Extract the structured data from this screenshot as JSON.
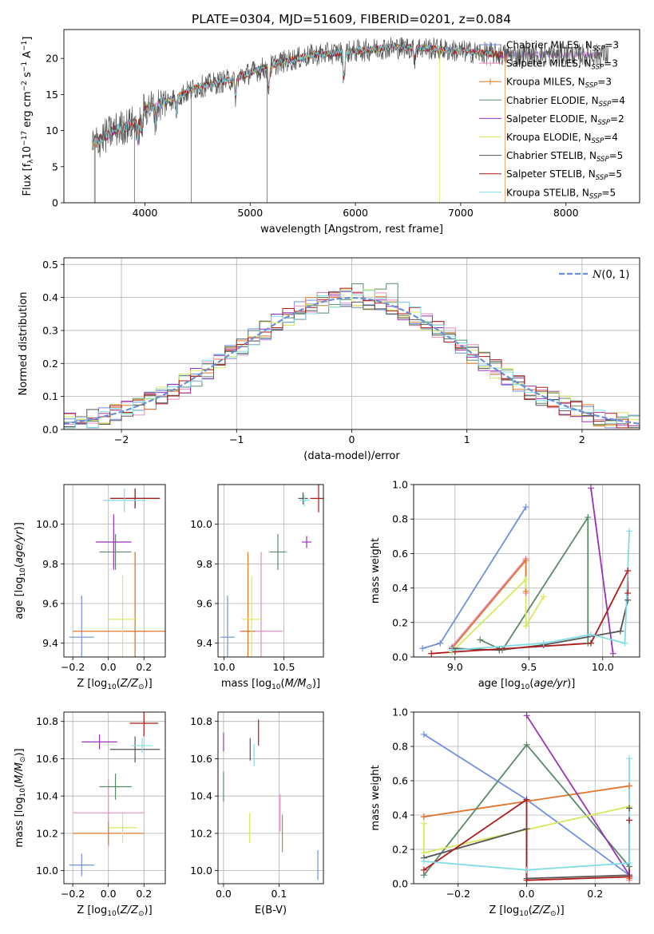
{
  "figure_title": "PLATE=0304, MJD=51609, FIBERID=0201, z=0.084",
  "colors": {
    "chabrier_miles": "#6f8fe0",
    "salpeter_miles": "#e58bc4",
    "kroupa_miles": "#e07a2a",
    "chabrier_elodie": "#5a8a6a",
    "salpeter_elodie": "#9932b8",
    "kroupa_elodie": "#d8e860",
    "chabrier_stelib": "#555555",
    "salpeter_stelib": "#b01a1a",
    "kroupa_stelib": "#80dde6",
    "gauss": "#6a8fd8",
    "grid": "#b0b0b0"
  },
  "chart_data": [
    {
      "id": "spectrum",
      "type": "line",
      "xlabel": "wavelength [Angstrom, rest frame]",
      "ylabel": "Flux [f_λ10^-17 erg cm^-2 s^-1 A^-1]",
      "xlim": [
        3230,
        8700
      ],
      "ylim": [
        0,
        24
      ],
      "xticks": [
        4000,
        5000,
        6000,
        7000,
        8000
      ],
      "yticks": [
        0,
        5,
        10,
        15,
        20
      ],
      "grid": false,
      "legend_position": "right",
      "continuum": {
        "x": [
          3500,
          3700,
          3900,
          4000,
          4200,
          4500,
          4800,
          5000,
          5300,
          5600,
          6000,
          6300,
          6600,
          7000,
          7400
        ],
        "y": [
          8,
          10,
          11,
          13,
          14,
          16,
          17,
          18,
          19.5,
          20.5,
          21,
          21.5,
          21.5,
          21,
          20.5
        ]
      },
      "series": [
        {
          "label": "Chabrier MILES, N_SSP=3",
          "color_key": "chabrier_miles",
          "marker": true
        },
        {
          "label": "Salpeter MILES, N_SSP=3",
          "color_key": "salpeter_miles",
          "marker": true
        },
        {
          "label": "Kroupa MILES, N_SSP=3",
          "color_key": "kroupa_miles",
          "marker": true
        },
        {
          "label": "Chabrier ELODIE, N_SSP=4",
          "color_key": "chabrier_elodie",
          "marker": false
        },
        {
          "label": "Salpeter ELODIE, N_SSP=2",
          "color_key": "salpeter_elodie",
          "marker": false
        },
        {
          "label": "Kroupa ELODIE, N_SSP=4",
          "color_key": "kroupa_elodie",
          "marker": false
        },
        {
          "label": "Chabrier STELIB, N_SSP=5",
          "color_key": "chabrier_stelib",
          "marker": false
        },
        {
          "label": "Salpeter STELIB, N_SSP=5",
          "color_key": "salpeter_stelib",
          "marker": false
        },
        {
          "label": "Kroupa STELIB, N_SSP=5",
          "color_key": "kroupa_stelib",
          "marker": false
        }
      ]
    },
    {
      "id": "residuals",
      "type": "histogram",
      "xlabel": "(data-model)/error",
      "ylabel": "Normed distribution",
      "xlim": [
        -2.5,
        2.5
      ],
      "ylim": [
        0,
        0.52
      ],
      "xticks": [
        -2,
        -1,
        0,
        1,
        2
      ],
      "yticks": [
        0.0,
        0.1,
        0.2,
        0.3,
        0.4,
        0.5
      ],
      "grid": true,
      "legend_position": "top-right",
      "legend_label": "N(0,1)",
      "bin_width": 0.1,
      "bin_start": -2.5
    },
    {
      "id": "age_vs_Z",
      "type": "errorbar",
      "xlabel": "Z [log10(Z/Zsun)]",
      "ylabel": "age [log10(age/yr)]",
      "xlim": [
        -0.25,
        0.32
      ],
      "ylim": [
        9.33,
        10.2
      ],
      "xticks": [
        -0.2,
        0.0,
        0.2
      ],
      "yticks": [
        9.4,
        9.6,
        9.8,
        10.0
      ],
      "grid": true,
      "points": [
        {
          "color_key": "chabrier_miles",
          "x": -0.15,
          "xerr": 0.07,
          "y": 9.43,
          "yerr": 0.21
        },
        {
          "color_key": "salpeter_miles",
          "x": 0.15,
          "xerr": 0.07,
          "y": 9.46,
          "yerr": 0.4
        },
        {
          "color_key": "kroupa_miles",
          "x": 0.15,
          "xerr": 0.35,
          "y": 9.46,
          "yerr": 0.4
        },
        {
          "color_key": "chabrier_elodie",
          "x": 0.04,
          "xerr": 0.09,
          "y": 9.86,
          "yerr": 0.09
        },
        {
          "color_key": "salpeter_elodie",
          "x": 0.03,
          "xerr": 0.1,
          "y": 9.91,
          "yerr": 0.14
        },
        {
          "color_key": "kroupa_elodie",
          "x": 0.08,
          "xerr": 0.08,
          "y": 9.52,
          "yerr": 0.22
        },
        {
          "color_key": "chabrier_stelib",
          "x": 0.15,
          "xerr": 0.14,
          "y": 10.13,
          "yerr": 0.05
        },
        {
          "color_key": "salpeter_stelib",
          "x": 0.15,
          "xerr": 0.14,
          "y": 10.13,
          "yerr": 0.05
        },
        {
          "color_key": "kroupa_stelib",
          "x": 0.09,
          "xerr": 0.12,
          "y": 10.12,
          "yerr": 0.06
        }
      ]
    },
    {
      "id": "age_vs_mass",
      "type": "errorbar",
      "xlabel": "mass [log10(M/Msun)]",
      "xlim": [
        9.95,
        10.83
      ],
      "ylim": [
        9.33,
        10.2
      ],
      "xticks": [
        10.0,
        10.5
      ],
      "yticks": [
        9.4,
        9.6,
        9.8,
        10.0
      ],
      "grid": true,
      "points": [
        {
          "color_key": "chabrier_miles",
          "x": 10.03,
          "xerr": 0.06,
          "y": 9.43,
          "yerr": 0.21
        },
        {
          "color_key": "salpeter_miles",
          "x": 10.31,
          "xerr": 0.18,
          "y": 9.46,
          "yerr": 0.4
        },
        {
          "color_key": "kroupa_miles",
          "x": 10.2,
          "xerr": 0.06,
          "y": 9.46,
          "yerr": 0.4
        },
        {
          "color_key": "chabrier_elodie",
          "x": 10.45,
          "xerr": 0.07,
          "y": 9.86,
          "yerr": 0.09
        },
        {
          "color_key": "salpeter_elodie",
          "x": 10.69,
          "xerr": 0.04,
          "y": 9.91,
          "yerr": 0.03
        },
        {
          "color_key": "kroupa_elodie",
          "x": 10.23,
          "xerr": 0.08,
          "y": 9.52,
          "yerr": 0.22
        },
        {
          "color_key": "chabrier_stelib",
          "x": 10.66,
          "xerr": 0.04,
          "y": 10.13,
          "yerr": 0.03
        },
        {
          "color_key": "salpeter_stelib",
          "x": 10.79,
          "xerr": 0.07,
          "y": 10.13,
          "yerr": 0.07
        },
        {
          "color_key": "kroupa_stelib",
          "x": 10.67,
          "xerr": 0.04,
          "y": 10.12,
          "yerr": 0.03
        }
      ]
    },
    {
      "id": "weight_vs_age",
      "type": "line",
      "xlabel": "age [log10(age/yr)]",
      "ylabel": "mass weight",
      "xlim": [
        8.72,
        10.25
      ],
      "ylim": [
        0,
        1.0
      ],
      "xticks": [
        9.0,
        9.5,
        10.0
      ],
      "yticks": [
        0.0,
        0.2,
        0.4,
        0.6,
        0.8,
        1.0
      ],
      "grid": true,
      "series": [
        {
          "color_key": "chabrier_miles",
          "x": [
            8.78,
            8.9,
            9.48
          ],
          "y": [
            0.05,
            0.08,
            0.87
          ]
        },
        {
          "color_key": "salpeter_miles",
          "x": [
            8.98,
            9.48,
            9.48
          ],
          "y": [
            0.06,
            0.57,
            0.37
          ]
        },
        {
          "color_key": "kroupa_miles",
          "x": [
            8.98,
            9.48,
            9.48
          ],
          "y": [
            0.05,
            0.56,
            0.38
          ]
        },
        {
          "color_key": "chabrier_elodie",
          "x": [
            9.17,
            9.32,
            9.9,
            9.9
          ],
          "y": [
            0.1,
            0.04,
            0.81,
            0.08
          ]
        },
        {
          "color_key": "salpeter_elodie",
          "x": [
            9.92,
            10.07
          ],
          "y": [
            0.98,
            0.02
          ]
        },
        {
          "color_key": "kroupa_elodie",
          "x": [
            8.98,
            9.48,
            9.48,
            9.6
          ],
          "y": [
            0.03,
            0.45,
            0.18,
            0.35
          ]
        },
        {
          "color_key": "chabrier_stelib",
          "x": [
            8.98,
            9.3,
            9.6,
            10.12,
            10.17
          ],
          "y": [
            0.05,
            0.04,
            0.07,
            0.15,
            0.33
          ]
        },
        {
          "color_key": "salpeter_stelib",
          "x": [
            8.84,
            9.0,
            9.92,
            10.17,
            10.17
          ],
          "y": [
            0.02,
            0.03,
            0.08,
            0.5,
            0.37
          ]
        },
        {
          "color_key": "kroupa_stelib",
          "x": [
            8.98,
            9.6,
            9.92,
            10.15,
            10.18
          ],
          "y": [
            0.04,
            0.08,
            0.13,
            0.08,
            0.73
          ]
        }
      ]
    },
    {
      "id": "mass_vs_Z",
      "type": "errorbar",
      "xlabel": "Z [log10(Z/Zsun)]",
      "ylabel": "mass [log10(M/Msun)]",
      "xlim": [
        -0.25,
        0.32
      ],
      "ylim": [
        9.93,
        10.85
      ],
      "xticks": [
        -0.2,
        0.0,
        0.2
      ],
      "yticks": [
        10.0,
        10.2,
        10.4,
        10.6,
        10.8
      ],
      "grid": true,
      "points": [
        {
          "color_key": "chabrier_miles",
          "x": -0.15,
          "xerr": 0.07,
          "y": 10.03,
          "yerr": 0.06
        },
        {
          "color_key": "salpeter_miles",
          "x": 0.0,
          "xerr": 0.2,
          "y": 10.31,
          "yerr": 0.18
        },
        {
          "color_key": "kroupa_miles",
          "x": 0.0,
          "xerr": 0.2,
          "y": 10.2,
          "yerr": 0.06
        },
        {
          "color_key": "chabrier_elodie",
          "x": 0.04,
          "xerr": 0.09,
          "y": 10.45,
          "yerr": 0.07
        },
        {
          "color_key": "salpeter_elodie",
          "x": -0.05,
          "xerr": 0.1,
          "y": 10.69,
          "yerr": 0.04
        },
        {
          "color_key": "kroupa_elodie",
          "x": 0.08,
          "xerr": 0.08,
          "y": 10.23,
          "yerr": 0.08
        },
        {
          "color_key": "chabrier_stelib",
          "x": 0.15,
          "xerr": 0.14,
          "y": 10.65,
          "yerr": 0.07
        },
        {
          "color_key": "salpeter_stelib",
          "x": 0.2,
          "xerr": 0.08,
          "y": 10.79,
          "yerr": 0.07
        },
        {
          "color_key": "kroupa_stelib",
          "x": 0.19,
          "xerr": 0.06,
          "y": 10.67,
          "yerr": 0.04
        }
      ]
    },
    {
      "id": "mass_vs_ebv",
      "type": "errorbar",
      "xlabel": "E(B-V)",
      "xlim": [
        -0.01,
        0.18
      ],
      "ylim": [
        9.93,
        10.85
      ],
      "xticks": [
        0.0,
        0.1
      ],
      "yticks": [
        10.0,
        10.2,
        10.4,
        10.6,
        10.8
      ],
      "grid": true,
      "points": [
        {
          "color_key": "chabrier_miles",
          "x": 0.17,
          "xerr": 0.0,
          "y": 10.03,
          "yerr": 0.08
        },
        {
          "color_key": "salpeter_miles",
          "x": 0.102,
          "xerr": 0.0,
          "y": 10.31,
          "yerr": 0.1
        },
        {
          "color_key": "kroupa_miles",
          "x": 0.106,
          "xerr": 0.0,
          "y": 10.2,
          "yerr": 0.1
        },
        {
          "color_key": "chabrier_elodie",
          "x": 0.0,
          "xerr": 0.0,
          "y": 10.45,
          "yerr": 0.08
        },
        {
          "color_key": "salpeter_elodie",
          "x": 0.0,
          "xerr": 0.0,
          "y": 10.69,
          "yerr": 0.05
        },
        {
          "color_key": "kroupa_elodie",
          "x": 0.047,
          "xerr": 0.0,
          "y": 10.23,
          "yerr": 0.08
        },
        {
          "color_key": "chabrier_stelib",
          "x": 0.048,
          "xerr": 0.0,
          "y": 10.65,
          "yerr": 0.06
        },
        {
          "color_key": "salpeter_stelib",
          "x": 0.063,
          "xerr": 0.0,
          "y": 10.74,
          "yerr": 0.07
        },
        {
          "color_key": "kroupa_stelib",
          "x": 0.055,
          "xerr": 0.0,
          "y": 10.62,
          "yerr": 0.06
        }
      ]
    },
    {
      "id": "weight_vs_Z",
      "type": "line",
      "xlabel": "Z [log10(Z/Zsun)]",
      "ylabel": "mass weight",
      "xlim": [
        -0.33,
        0.33
      ],
      "ylim": [
        0,
        1.0
      ],
      "xticks": [
        -0.2,
        0.0,
        0.2
      ],
      "yticks": [
        0.0,
        0.2,
        0.4,
        0.6,
        0.8,
        1.0
      ],
      "grid": true,
      "series": [
        {
          "color_key": "chabrier_miles",
          "x": [
            -0.3,
            0.0,
            0.3
          ],
          "y": [
            0.87,
            0.49,
            0.05
          ]
        },
        {
          "color_key": "salpeter_miles",
          "x": [
            -0.3,
            0.3,
            0.3
          ],
          "y": [
            0.39,
            0.57,
            0.02
          ]
        },
        {
          "color_key": "kroupa_miles",
          "x": [
            -0.3,
            0.3,
            0.3
          ],
          "y": [
            0.39,
            0.57,
            0.03
          ]
        },
        {
          "color_key": "chabrier_elodie",
          "x": [
            -0.3,
            0.0,
            0.3
          ],
          "y": [
            0.05,
            0.81,
            0.1
          ]
        },
        {
          "color_key": "salpeter_elodie",
          "x": [
            0.0,
            0.3
          ],
          "y": [
            0.98,
            0.05
          ]
        },
        {
          "color_key": "kroupa_elodie",
          "x": [
            -0.3,
            -0.3,
            0.3
          ],
          "y": [
            0.35,
            0.18,
            0.45
          ]
        },
        {
          "color_key": "chabrier_stelib",
          "x": [
            -0.3,
            0.0,
            0.0,
            0.3,
            0.3
          ],
          "y": [
            0.15,
            0.32,
            0.03,
            0.05,
            0.44
          ]
        },
        {
          "color_key": "salpeter_stelib",
          "x": [
            -0.3,
            0.0,
            0.0,
            0.3,
            0.3
          ],
          "y": [
            0.08,
            0.49,
            0.02,
            0.04,
            0.37
          ]
        },
        {
          "color_key": "kroupa_stelib",
          "x": [
            -0.3,
            0.0,
            0.3,
            0.3
          ],
          "y": [
            0.13,
            0.08,
            0.12,
            0.73
          ]
        }
      ]
    }
  ]
}
